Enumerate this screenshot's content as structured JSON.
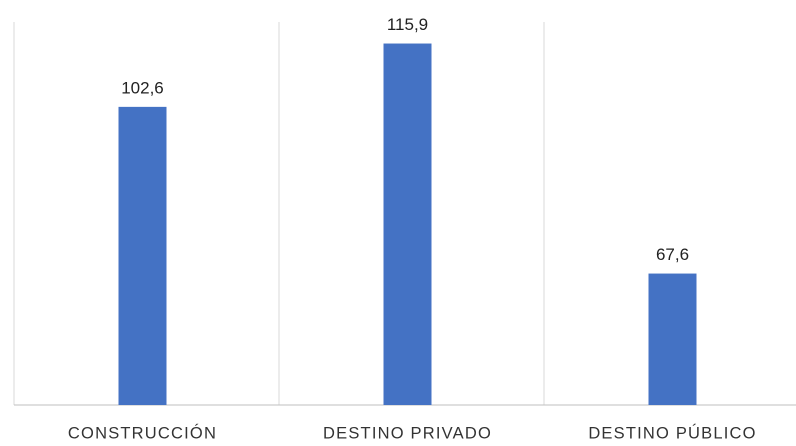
{
  "chart_data": {
    "type": "bar",
    "categories": [
      "CONSTRUCCIÓN",
      "DESTINO PRIVADO",
      "DESTINO PÚBLICO"
    ],
    "values": [
      102.6,
      115.9,
      67.6
    ],
    "value_labels": [
      "102,6",
      "115,9",
      "67,6"
    ],
    "color": "#4472c4",
    "ylim": [
      40,
      120
    ],
    "grid": true
  }
}
